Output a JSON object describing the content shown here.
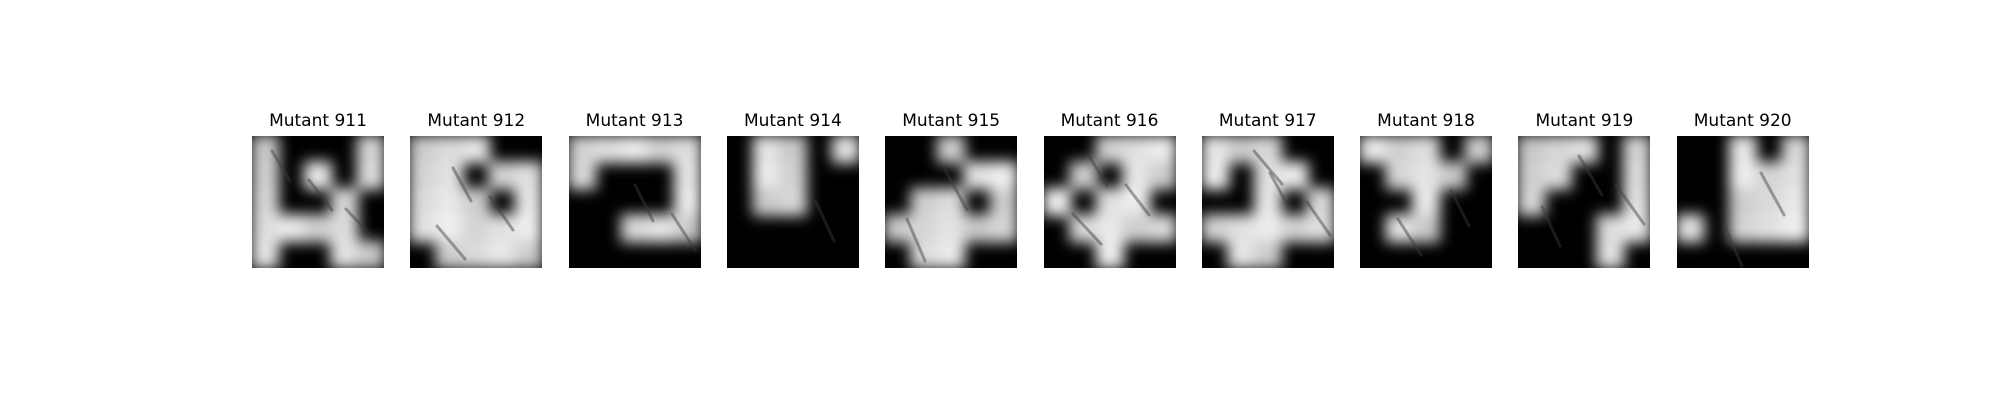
{
  "panels": [
    {
      "title": "Mutant 911",
      "mask": "10001|10101|10010|11110|10011",
      "streaks": 3
    },
    {
      "title": "Mutant 912",
      "mask": "11100|11011|11101|11111|01111",
      "streaks": 3
    },
    {
      "title": "Mutant 913",
      "mask": "11111|10001|00001|00111|00000",
      "streaks": 2
    },
    {
      "title": "Mutant 914",
      "mask": "01101|01100|01100|00000|00000",
      "streaks": 1
    },
    {
      "title": "Mutant 915",
      "mask": "00100|00011|01101|11111|01100",
      "streaks": 2
    },
    {
      "title": "Mutant 916",
      "mask": "00111|01011|10110|01111|00100",
      "streaks": 3
    },
    {
      "title": "Mutant 917",
      "mask": "11100|10110|00101|11111|01100",
      "streaks": 3
    },
    {
      "title": "Mutant 918",
      "mask": "11101|01110|00100|01100|00000",
      "streaks": 2
    },
    {
      "title": "Mutant 919",
      "mask": "11101|11001|10001|00011|00010",
      "streaks": 3
    },
    {
      "title": "Mutant 920",
      "mask": "00101|00111|00111|10111|00000",
      "streaks": 2
    }
  ],
  "colors": {
    "background": "#ffffff",
    "dark": "#000000",
    "light": "#e8e8e8"
  }
}
